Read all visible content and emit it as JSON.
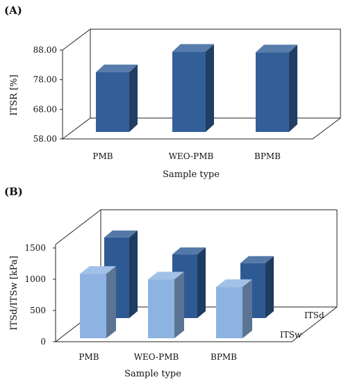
{
  "chart_data": [
    {
      "panel_label": "(A)",
      "type": "bar",
      "title": "",
      "xlabel": "Sample type",
      "ylabel": "ITSR [%]",
      "ylim": [
        58.0,
        88.0
      ],
      "yticks": [
        "58.00",
        "68.00",
        "78.00",
        "88.00"
      ],
      "categories": [
        "PMB",
        "WEO-PMB",
        "BPMB"
      ],
      "series": [
        {
          "values": [
            80.5,
            87.4,
            87.2
          ],
          "color": "#335f99"
        }
      ],
      "grid": false,
      "style": "3d-column"
    },
    {
      "panel_label": "(B)",
      "type": "bar",
      "title": "",
      "xlabel": "Sample type",
      "ylabel": "ITSd/ITSw [kPa]",
      "ylim": [
        0,
        1500
      ],
      "yticks": [
        "0",
        "500",
        "1000",
        "1500"
      ],
      "categories": [
        "PMB",
        "WEO-PMB",
        "BPMB"
      ],
      "series": [
        {
          "name": "ITSw",
          "values": [
            1030,
            940,
            820
          ],
          "color": "#8db3e2"
        },
        {
          "name": "ITSd",
          "values": [
            1290,
            1020,
            880
          ],
          "color": "#2e5a94"
        }
      ],
      "grid": false,
      "style": "3d-column",
      "legend": "depth-axis labels"
    }
  ]
}
